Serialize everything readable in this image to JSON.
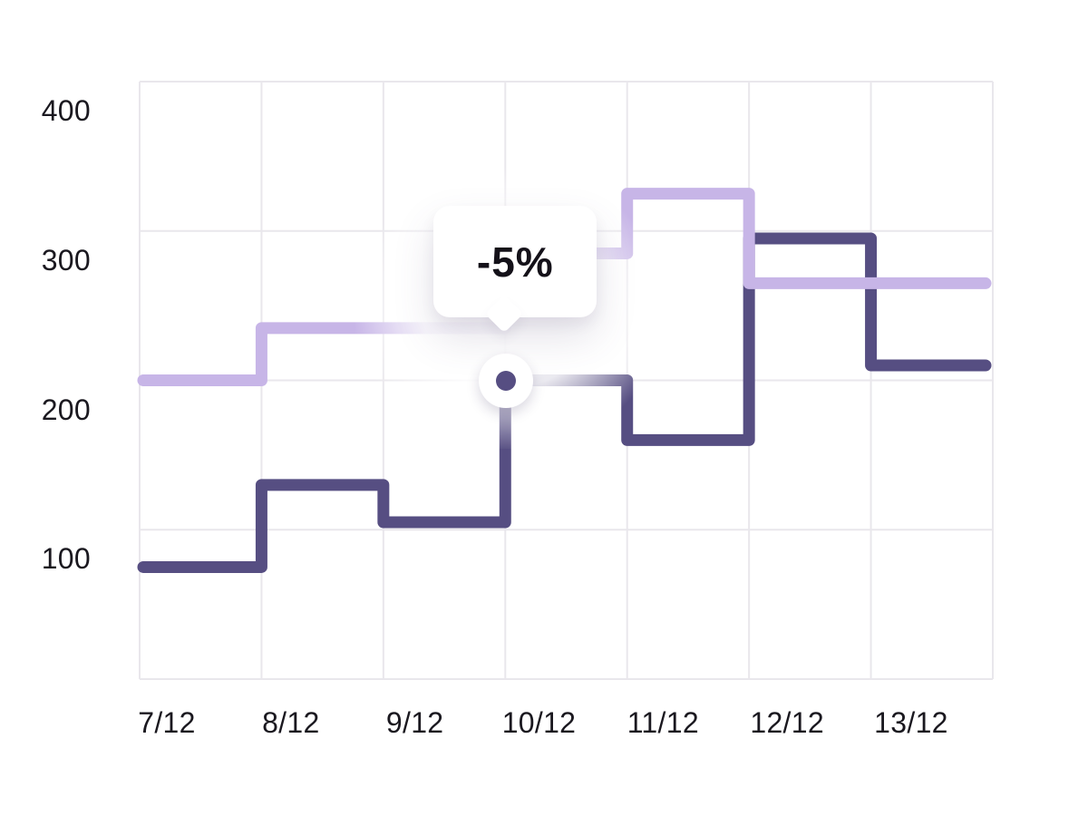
{
  "chart_data": {
    "type": "line",
    "subtype": "step-after",
    "title": "",
    "x_labels": [
      "7/12",
      "8/12",
      "9/12",
      "10/12",
      "11/12",
      "12/12",
      "13/12"
    ],
    "y_ticks": [
      400,
      300,
      200,
      100
    ],
    "ylim": [
      0,
      400
    ],
    "grid": true,
    "legend": "none",
    "series": [
      {
        "name": "dark-purple-series",
        "color": "#564e82",
        "values": [
          75,
          130,
          105,
          200,
          160,
          295,
          210
        ]
      },
      {
        "name": "light-purple-series",
        "color": "#c7b5e7",
        "values": [
          200,
          235,
          235,
          285,
          325,
          265,
          265
        ]
      }
    ],
    "tooltip": {
      "label": "-5%",
      "series": "dark-purple-series",
      "x_label": "10/12",
      "value": 200
    }
  },
  "colors": {
    "background": "#ffffff",
    "grid": "#e9e7ec",
    "axis_text": "#1a181f",
    "tooltip_bg": "#ffffff",
    "tooltip_text": "#141119",
    "marker": "#564e82",
    "marker_halo": "#ffffff"
  }
}
